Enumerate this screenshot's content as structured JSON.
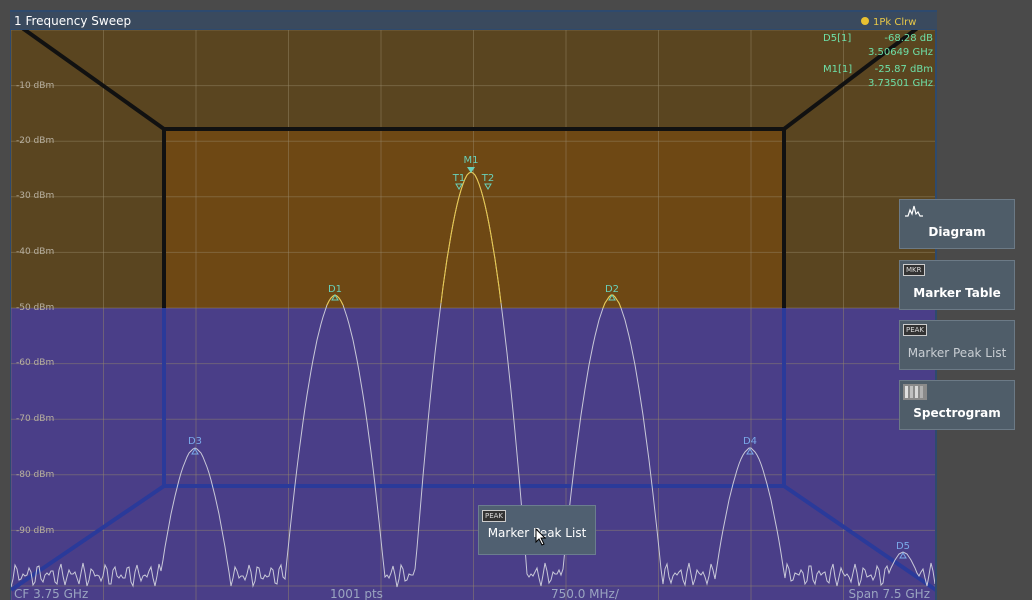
{
  "window": {
    "title": "1 Frequency Sweep",
    "trace_info": "1Pk Clrw"
  },
  "marker_readout": [
    {
      "name": "D5[1]",
      "value": "-68.28 dB",
      "freq": "3.50649 GHz"
    },
    {
      "name": "M1[1]",
      "value": "-25.87 dBm",
      "freq": "3.73501 GHz"
    }
  ],
  "y_axis_labels": [
    "-10 dBm",
    "-20 dBm",
    "-30 dBm",
    "-40 dBm",
    "-50 dBm",
    "-60 dBm",
    "-70 dBm",
    "-80 dBm",
    "-90 dBm"
  ],
  "trace_markers": [
    "M1",
    "T1",
    "T2",
    "D1",
    "D2",
    "D3",
    "D4",
    "D5"
  ],
  "footer": {
    "cf": "CF 3.75 GHz",
    "points": "1001 pts",
    "div": "750.0 MHz/",
    "span": "Span 7.5 GHz"
  },
  "side_panel": {
    "items": [
      {
        "label": "Diagram",
        "icon": "diagram-icon"
      },
      {
        "label": "Marker Table",
        "icon": "mkr-icon",
        "icon_text": "MKR"
      },
      {
        "label": "Marker Peak List",
        "icon": "peak-icon",
        "icon_text": "PEAK"
      },
      {
        "label": "Spectrogram",
        "icon": "spectrogram-icon"
      }
    ]
  },
  "drag_item": {
    "label": "Marker Peak List",
    "icon": "peak-icon",
    "icon_text": "PEAK"
  },
  "colors": {
    "trace": "#e8c848",
    "marker": "#6ad0b8",
    "blue_marker": "#7aa8e8",
    "top_zone": "#5a4520",
    "center_zone": "#6e4814",
    "bottom_zone": "#4a3e88",
    "readout_text": "#6ee0a8",
    "panel": "#4f5d69"
  }
}
